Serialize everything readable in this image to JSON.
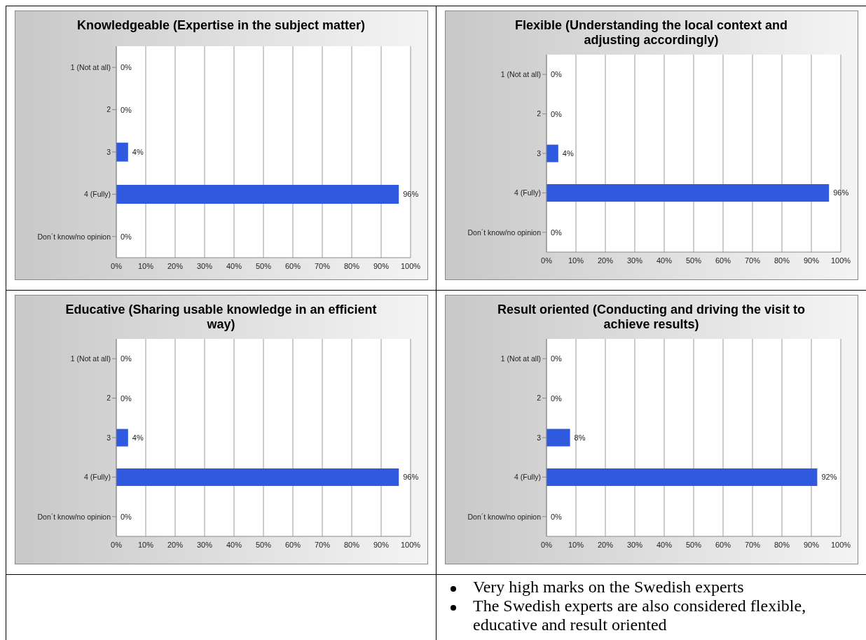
{
  "chart_data": [
    {
      "type": "bar",
      "orientation": "horizontal",
      "title": "Knowledgeable (Expertise in the subject matter)",
      "categories": [
        "1 (Not at all)",
        "2",
        "3",
        "4 (Fully)",
        "Don´t know/no opinion"
      ],
      "values": [
        0,
        0,
        4,
        96,
        0
      ],
      "value_labels": [
        "0%",
        "0%",
        "4%",
        "96%",
        "0%"
      ],
      "color": "#2f5ae0",
      "xlim": [
        0,
        100
      ],
      "xticks": [
        {
          "value": 0,
          "label": "0%"
        },
        {
          "value": 10,
          "label": "10%"
        },
        {
          "value": 20,
          "label": "20%"
        },
        {
          "value": 30,
          "label": "30%"
        },
        {
          "value": 40,
          "label": "40%"
        },
        {
          "value": 50,
          "label": "50%"
        },
        {
          "value": 60,
          "label": "60%"
        },
        {
          "value": 70,
          "label": "70%"
        },
        {
          "value": 80,
          "label": "80%"
        },
        {
          "value": 90,
          "label": "90%"
        },
        {
          "value": 100,
          "label": "100%"
        }
      ],
      "grid": "x",
      "legend": false
    },
    {
      "type": "bar",
      "orientation": "horizontal",
      "title": "Flexible (Understanding the local context and adjusting accordingly)",
      "categories": [
        "1 (Not at all)",
        "2",
        "3",
        "4 (Fully)",
        "Don´t know/no opinion"
      ],
      "values": [
        0,
        0,
        4,
        96,
        0
      ],
      "value_labels": [
        "0%",
        "0%",
        "4%",
        "96%",
        "0%"
      ],
      "color": "#2f5ae0",
      "xlim": [
        0,
        100
      ],
      "xticks": [
        {
          "value": 0,
          "label": "0%"
        },
        {
          "value": 10,
          "label": "10%"
        },
        {
          "value": 20,
          "label": "20%"
        },
        {
          "value": 30,
          "label": "30%"
        },
        {
          "value": 40,
          "label": "40%"
        },
        {
          "value": 50,
          "label": "50%"
        },
        {
          "value": 60,
          "label": "60%"
        },
        {
          "value": 70,
          "label": "70%"
        },
        {
          "value": 80,
          "label": "80%"
        },
        {
          "value": 90,
          "label": "90%"
        },
        {
          "value": 100,
          "label": "100%"
        }
      ],
      "grid": "x",
      "legend": false
    },
    {
      "type": "bar",
      "orientation": "horizontal",
      "title": "Educative (Sharing usable knowledge in an efficient way)",
      "categories": [
        "1 (Not at all)",
        "2",
        "3",
        "4 (Fully)",
        "Don´t know/no opinion"
      ],
      "values": [
        0,
        0,
        4,
        96,
        0
      ],
      "value_labels": [
        "0%",
        "0%",
        "4%",
        "96%",
        "0%"
      ],
      "color": "#2f5ae0",
      "xlim": [
        0,
        100
      ],
      "xticks": [
        {
          "value": 0,
          "label": "0%"
        },
        {
          "value": 10,
          "label": "10%"
        },
        {
          "value": 20,
          "label": "20%"
        },
        {
          "value": 30,
          "label": "30%"
        },
        {
          "value": 40,
          "label": "40%"
        },
        {
          "value": 50,
          "label": "50%"
        },
        {
          "value": 60,
          "label": "60%"
        },
        {
          "value": 70,
          "label": "70%"
        },
        {
          "value": 80,
          "label": "80%"
        },
        {
          "value": 90,
          "label": "90%"
        },
        {
          "value": 100,
          "label": "100%"
        }
      ],
      "grid": "x",
      "legend": false
    },
    {
      "type": "bar",
      "orientation": "horizontal",
      "title": "Result oriented (Conducting and driving the visit to achieve results)",
      "categories": [
        "1 (Not at all)",
        "2",
        "3",
        "4 (Fully)",
        "Don´t know/no opinion"
      ],
      "values": [
        0,
        0,
        8,
        92,
        0
      ],
      "value_labels": [
        "0%",
        "0%",
        "8%",
        "92%",
        "0%"
      ],
      "color": "#2f5ae0",
      "xlim": [
        0,
        100
      ],
      "xticks": [
        {
          "value": 0,
          "label": "0%"
        },
        {
          "value": 10,
          "label": "10%"
        },
        {
          "value": 20,
          "label": "20%"
        },
        {
          "value": 30,
          "label": "30%"
        },
        {
          "value": 40,
          "label": "40%"
        },
        {
          "value": 50,
          "label": "50%"
        },
        {
          "value": 60,
          "label": "60%"
        },
        {
          "value": 70,
          "label": "70%"
        },
        {
          "value": 80,
          "label": "80%"
        },
        {
          "value": 90,
          "label": "90%"
        },
        {
          "value": 100,
          "label": "100%"
        }
      ],
      "grid": "x",
      "legend": false
    },
    {
      "type": "other",
      "annotations": [
        "Very high marks on the Swedish experts",
        "The Swedish experts are also considered flexible, educative and result oriented"
      ]
    }
  ]
}
